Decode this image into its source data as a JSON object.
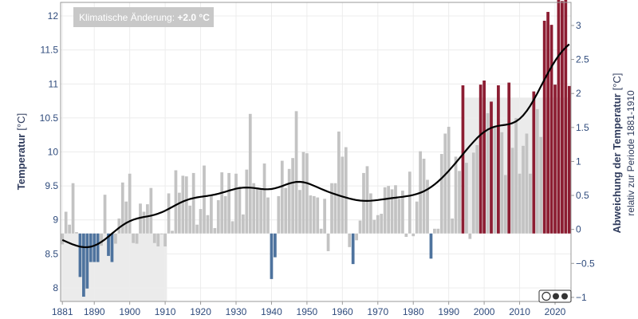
{
  "chart_data": {
    "type": "bar",
    "badge": {
      "label": "Klimatische Änderung: ",
      "value": "+2.0 °C"
    },
    "y_left": {
      "label": "Temperatur",
      "unit": "[°C]",
      "ticks": [
        "8",
        "8.5",
        "9",
        "9.5",
        "10",
        "10.5",
        "11",
        "11.5",
        "12"
      ],
      "range": [
        7.8,
        12.2
      ]
    },
    "y_right": {
      "label": "Abweichung der Temperatur",
      "unit": "[°C]",
      "sublabel": "relativ zur Periode 1881-1910",
      "ticks": [
        "−1",
        "−0.5",
        "0",
        "0.5",
        "1",
        "1.5",
        "2",
        "2.5",
        "3"
      ],
      "range": [
        -1.06,
        3.34
      ]
    },
    "x": {
      "range": [
        1880.5,
        2024.5
      ],
      "ticks": [
        "1881",
        "1890",
        "1900",
        "1910",
        "1920",
        "1930",
        "1940",
        "1950",
        "1960",
        "1970",
        "1980",
        "1990",
        "2000",
        "2010",
        "2020"
      ]
    },
    "baseline": 8.8,
    "reference_periods": [
      {
        "from": 1881,
        "to": 1910,
        "height_anomaly": -1.0
      },
      {
        "from": 1995,
        "to": 2024,
        "height_anomaly": 2.0
      }
    ],
    "colors": {
      "cold": "#4e739e",
      "neutral": "#c3c3c3",
      "warm_recent": "#8c1d32",
      "trend": "#000000",
      "reference_shade": "#ebebeb",
      "axis_text": "#2f4b7c",
      "badge_bg": "#c8c8c8"
    },
    "years": [
      1881,
      1882,
      1883,
      1884,
      1885,
      1886,
      1887,
      1888,
      1889,
      1890,
      1891,
      1892,
      1893,
      1894,
      1895,
      1896,
      1897,
      1898,
      1899,
      1900,
      1901,
      1902,
      1903,
      1904,
      1905,
      1906,
      1907,
      1908,
      1909,
      1910,
      1911,
      1912,
      1913,
      1914,
      1915,
      1916,
      1917,
      1918,
      1919,
      1920,
      1921,
      1922,
      1923,
      1924,
      1925,
      1926,
      1927,
      1928,
      1929,
      1930,
      1931,
      1932,
      1933,
      1934,
      1935,
      1936,
      1937,
      1938,
      1939,
      1940,
      1941,
      1942,
      1943,
      1944,
      1945,
      1946,
      1947,
      1948,
      1949,
      1950,
      1951,
      1952,
      1953,
      1954,
      1955,
      1956,
      1957,
      1958,
      1959,
      1960,
      1961,
      1962,
      1963,
      1964,
      1965,
      1966,
      1967,
      1968,
      1969,
      1970,
      1971,
      1972,
      1973,
      1974,
      1975,
      1976,
      1977,
      1978,
      1979,
      1980,
      1981,
      1982,
      1983,
      1984,
      1985,
      1986,
      1987,
      1988,
      1989,
      1990,
      1991,
      1992,
      1993,
      1994,
      1995,
      1996,
      1997,
      1998,
      1999,
      2000,
      2001,
      2002,
      2003,
      2004,
      2005,
      2006,
      2007,
      2008,
      2009,
      2010,
      2011,
      2012,
      2013,
      2014,
      2015,
      2016,
      2017,
      2018,
      2019,
      2020,
      2021,
      2022,
      2023,
      2024
    ],
    "temperatures": [
      8.64,
      9.12,
      8.93,
      9.54,
      8.82,
      8.16,
      7.87,
      7.99,
      8.38,
      8.38,
      8.38,
      8.62,
      9.37,
      8.47,
      8.38,
      8.65,
      9.02,
      9.55,
      9.27,
      9.68,
      8.66,
      8.65,
      9.24,
      9.12,
      9.23,
      9.47,
      8.66,
      8.61,
      8.8,
      8.61,
      9.39,
      8.84,
      9.73,
      9.4,
      9.65,
      9.64,
      9.21,
      9.69,
      8.93,
      9.16,
      9.8,
      9.07,
      9.36,
      8.88,
      9.29,
      9.7,
      9.35,
      9.69,
      8.98,
      9.68,
      9.49,
      9.08,
      9.74,
      10.56,
      9.54,
      9.48,
      9.46,
      9.83,
      9.33,
      8.13,
      8.45,
      9.35,
      9.87,
      9.47,
      9.75,
      9.91,
      10.6,
      9.44,
      10.0,
      9.98,
      9.36,
      9.35,
      9.33,
      8.87,
      9.31,
      8.54,
      9.54,
      9.54,
      10.3,
      9.93,
      10.07,
      8.6,
      8.35,
      8.7,
      8.99,
      9.69,
      9.79,
      9.39,
      9.0,
      9.07,
      9.09,
      9.48,
      9.5,
      9.45,
      9.51,
      9.31,
      9.43,
      8.75,
      9.71,
      8.76,
      9.27,
      10.01,
      9.9,
      9.59,
      8.43,
      8.87,
      8.87,
      9.97,
      10.27,
      10.37,
      9.02,
      9.93,
      9.72,
      10.98,
      9.84,
      8.72,
      9.99,
      10.1,
      10.99,
      11.05,
      10.57,
      10.74,
      10.36,
      10.98,
      10.29,
      9.66,
      11.02,
      10.06,
      10.5,
      9.68,
      10.09,
      10.27,
      9.68,
      10.89,
      10.63,
      10.22,
      11.93,
      12.06,
      11.87,
      10.99,
      12.32,
      12.22,
      12.3,
      10.97
    ]
  }
}
